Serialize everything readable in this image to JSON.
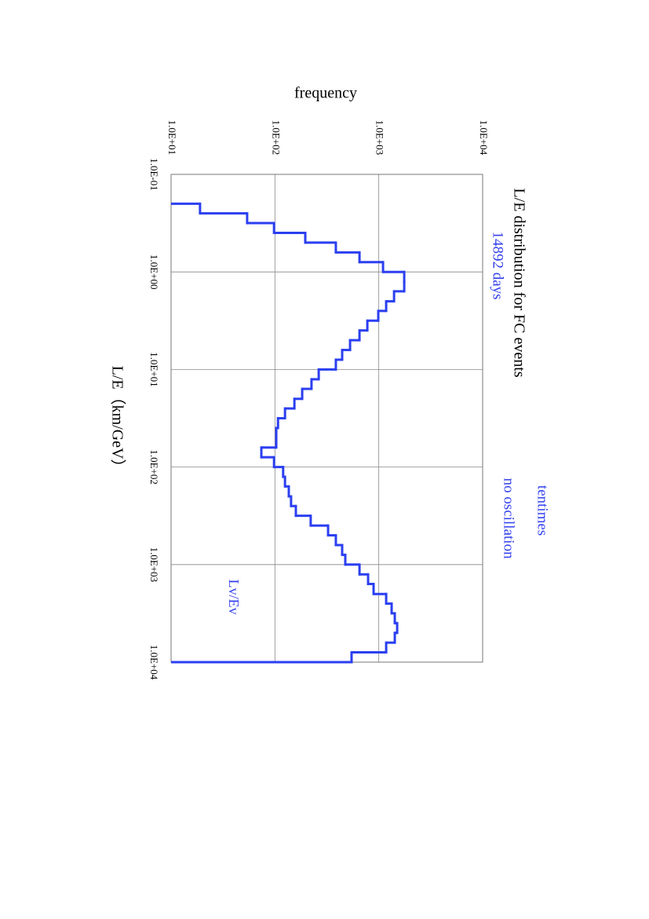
{
  "chart_data": {
    "type": "histogram",
    "title": "L/E distribution for FC events",
    "subtitle": "14892 days",
    "annotations": [
      "tentimes",
      "no oscillation",
      "Lv/Ev"
    ],
    "xlabel": "L/E（km/GeV）",
    "ylabel": "frequency",
    "xscale": "log",
    "yscale": "log",
    "grid": true,
    "color": "#2b3ff0",
    "bins": [
      0.2,
      0.251,
      0.316,
      0.398,
      0.501,
      0.631,
      0.794,
      1,
      1.26,
      1.58,
      2,
      2.51,
      3.16,
      3.98,
      5.01,
      6.31,
      7.94,
      10,
      12.6,
      15.8,
      20,
      25.1,
      31.6,
      39.8,
      50.1,
      63.1,
      79.4,
      100,
      126,
      158,
      200,
      251,
      316,
      398,
      501,
      631,
      794,
      1000,
      1260,
      1580,
      2000,
      2510,
      3160,
      3980,
      5010,
      6310,
      7940,
      10000
    ],
    "values": [
      19,
      54,
      98,
      196,
      386,
      652,
      1099,
      1758,
      1758,
      1403,
      1178,
      989,
      776,
      652,
      529,
      444,
      386,
      264,
      225,
      183,
      154,
      125,
      107,
      103,
      103,
      74,
      98,
      120,
      125,
      136,
      143,
      159,
      221,
      325,
      386,
      444,
      476,
      652,
      789,
      891,
      1178,
      1330,
      1426,
      1503,
      1426,
      1178,
      547
    ],
    "xlim": [
      0.1,
      10000
    ],
    "xticks": [
      {
        "value": 0.1,
        "label": "1.0E-01"
      },
      {
        "value": 1,
        "label": "1.0E+00"
      },
      {
        "value": 10,
        "label": "1.0E+01"
      },
      {
        "value": 100,
        "label": "1.0E+02"
      },
      {
        "value": 1000,
        "label": "1.0E+03"
      },
      {
        "value": 10000,
        "label": "1.0E+04"
      }
    ],
    "ylim": [
      10,
      10000
    ],
    "yticks": [
      {
        "value": 10,
        "label": "1.0E+01"
      },
      {
        "value": 100,
        "label": "1.0E+02"
      },
      {
        "value": 1000,
        "label": "1.0E+03"
      },
      {
        "value": 10000,
        "label": "1.0E+04"
      }
    ]
  }
}
